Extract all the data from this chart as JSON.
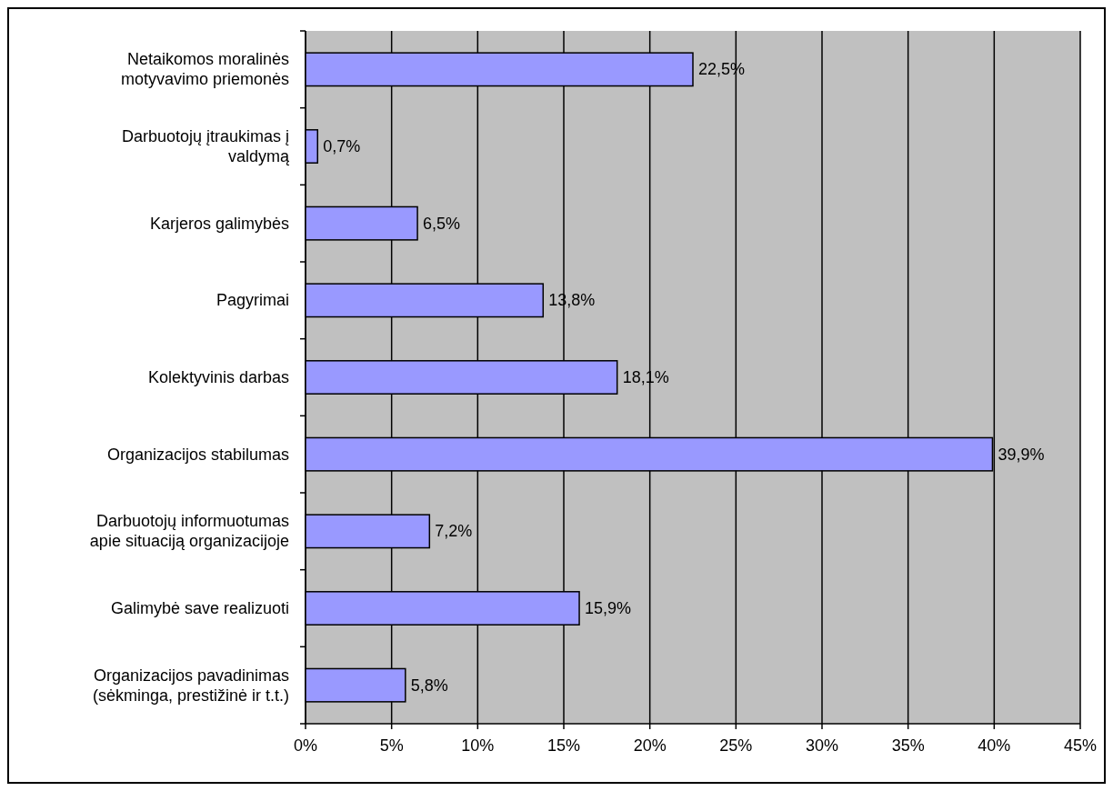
{
  "chart_data": {
    "type": "bar",
    "orientation": "horizontal",
    "categories": [
      "Netaikomos moralinės motyvavimo priemonės",
      "Darbuotojų įtraukimas į valdymą",
      "Karjeros galimybės",
      "Pagyrimai",
      "Kolektyvinis darbas",
      "Organizacijos stabilumas",
      "Darbuotojų informuotumas apie situaciją organizacijoje",
      "Galimybė save realizuoti",
      "Organizacijos pavadinimas (sėkminga, prestižinė ir t.t.)"
    ],
    "values": [
      22.5,
      0.7,
      6.5,
      13.8,
      18.1,
      39.9,
      7.2,
      15.9,
      5.8
    ],
    "value_labels": [
      "22,5%",
      "0,7%",
      "6,5%",
      "13,8%",
      "18,1%",
      "39,9%",
      "7,2%",
      "15,9%",
      "5,8%"
    ],
    "color": "#9999ff",
    "xlim": [
      0,
      45
    ],
    "xticks": [
      {
        "value": 0,
        "label": "0%"
      },
      {
        "value": 5,
        "label": "5%"
      },
      {
        "value": 10,
        "label": "10%"
      },
      {
        "value": 15,
        "label": "15%"
      },
      {
        "value": 20,
        "label": "20%"
      },
      {
        "value": 25,
        "label": "25%"
      },
      {
        "value": 30,
        "label": "30%"
      },
      {
        "value": 35,
        "label": "35%"
      },
      {
        "value": 40,
        "label": "40%"
      },
      {
        "value": 45,
        "label": "45%"
      }
    ],
    "grid": "x"
  }
}
